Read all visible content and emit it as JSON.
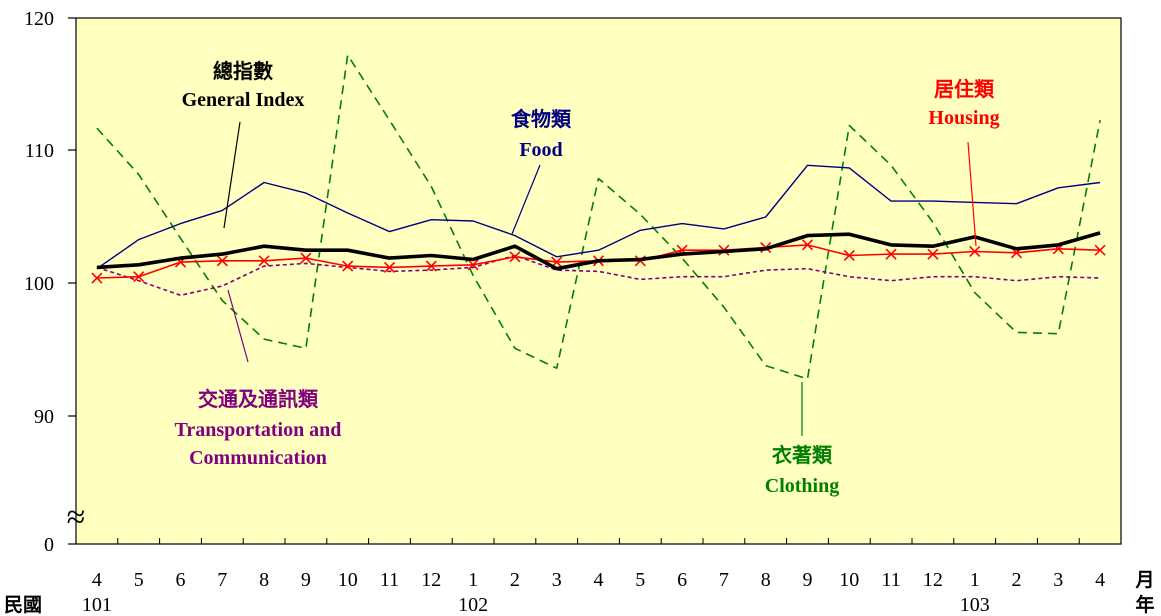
{
  "chart_data": {
    "type": "line",
    "y_ticks": [
      "120",
      "110",
      "100",
      "90",
      "0"
    ],
    "axis_break_symbol": "≈",
    "months": [
      "4",
      "5",
      "6",
      "7",
      "8",
      "9",
      "10",
      "11",
      "12",
      "1",
      "2",
      "3",
      "4",
      "5",
      "6",
      "7",
      "8",
      "9",
      "10",
      "11",
      "12",
      "1",
      "2",
      "3",
      "4"
    ],
    "years": [
      {
        "label": "101",
        "index": 0
      },
      {
        "label": "102",
        "index": 9
      },
      {
        "label": "103",
        "index": 21
      }
    ],
    "year_prefix": "民國",
    "month_unit": "月",
    "year_unit": "年",
    "plot_background": "#ffffc0",
    "series": [
      {
        "key": "clothing",
        "label_cn": "衣著類",
        "label_en": "Clothing",
        "color": "#008000",
        "style": "dashed",
        "values": [
          111.7,
          108.2,
          103.4,
          98.7,
          95.8,
          95.1,
          117.2,
          112.3,
          107.3,
          100.6,
          95.1,
          93.6,
          107.9,
          105.2,
          101.9,
          98.2,
          93.8,
          92.8,
          111.9,
          108.9,
          104.6,
          99.3,
          96.3,
          96.2,
          112.3
        ]
      },
      {
        "key": "food",
        "label_cn": "食物類",
        "label_en": "Food",
        "color": "#000080",
        "style": "solid",
        "values": [
          101.1,
          103.3,
          104.5,
          105.5,
          107.6,
          106.8,
          105.3,
          103.9,
          104.8,
          104.7,
          103.6,
          102.0,
          102.5,
          104.0,
          104.5,
          104.1,
          105.0,
          108.9,
          108.7,
          106.2,
          106.2,
          106.1,
          106.0,
          107.2,
          107.6
        ]
      },
      {
        "key": "general",
        "label_cn": "總指數",
        "label_en": "General Index",
        "color": "#000000",
        "style": "bold",
        "values": [
          101.2,
          101.4,
          101.9,
          102.2,
          102.8,
          102.5,
          102.5,
          101.9,
          102.1,
          101.8,
          102.8,
          101.1,
          101.7,
          101.8,
          102.2,
          102.4,
          102.6,
          103.6,
          103.7,
          102.9,
          102.8,
          103.5,
          102.6,
          102.9,
          103.8
        ]
      },
      {
        "key": "housing",
        "label_cn": "居住類",
        "label_en": "Housing",
        "color": "#ff0000",
        "style": "marker",
        "values": [
          100.4,
          100.5,
          101.6,
          101.7,
          101.7,
          101.9,
          101.3,
          101.2,
          101.3,
          101.4,
          102.0,
          101.6,
          101.7,
          101.7,
          102.5,
          102.5,
          102.7,
          102.9,
          102.1,
          102.2,
          102.2,
          102.4,
          102.3,
          102.6,
          102.5
        ]
      },
      {
        "key": "transport",
        "label_cn": "交通及通訊類",
        "label_en": "Transportation and",
        "label_en2": "Communication",
        "color": "#800080",
        "style": "dotted",
        "values": [
          101.2,
          100.2,
          99.1,
          99.8,
          101.3,
          101.5,
          101.2,
          100.9,
          101.0,
          101.2,
          102.1,
          101.0,
          100.9,
          100.3,
          100.5,
          100.5,
          101.0,
          101.1,
          100.5,
          100.2,
          100.5,
          100.5,
          100.2,
          100.5,
          100.4
        ]
      }
    ]
  }
}
